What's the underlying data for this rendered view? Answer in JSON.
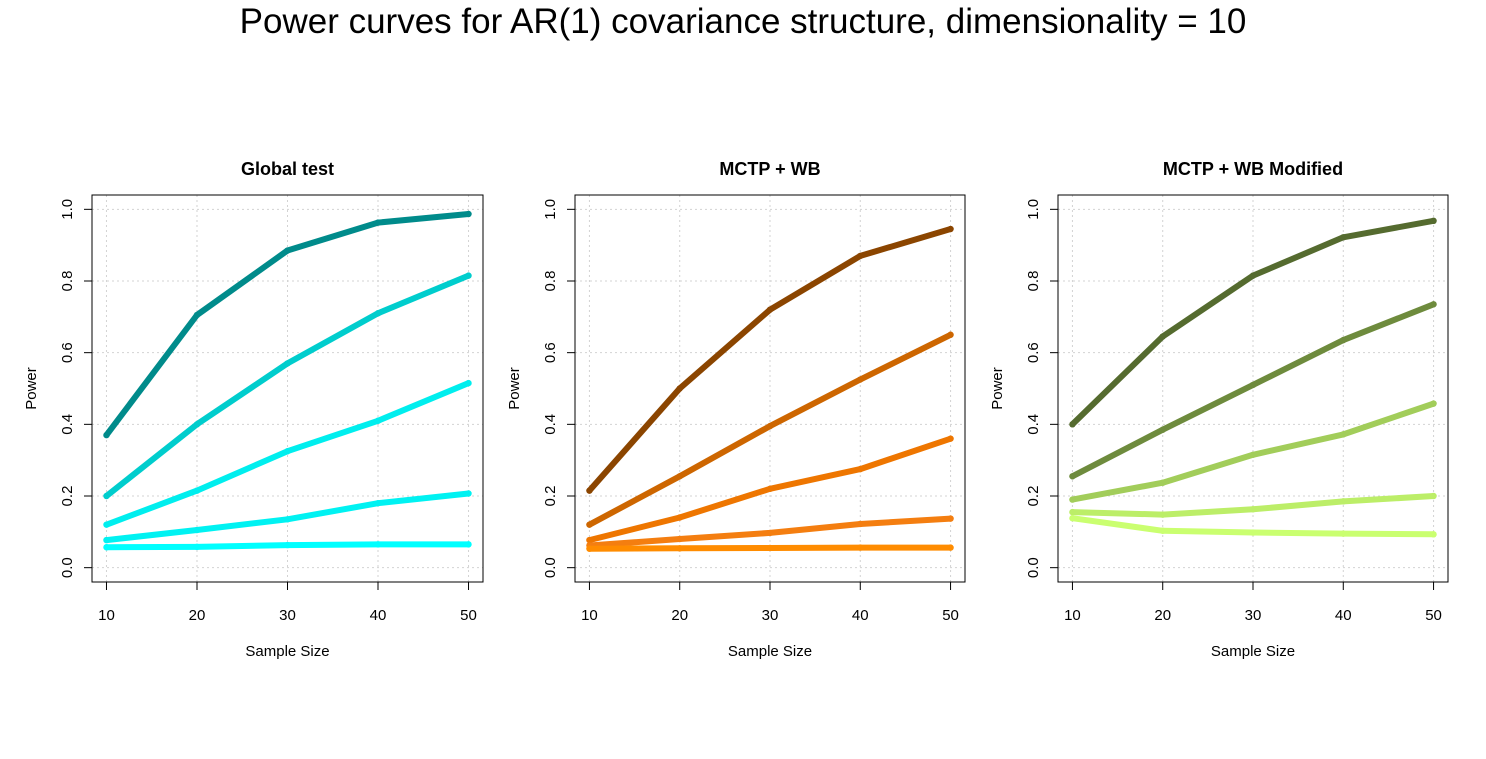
{
  "title": "Power curves for AR(1) covariance structure, dimensionality = 10",
  "chart_data": [
    {
      "type": "line",
      "title": "Global test",
      "xlabel": "Sample Size",
      "ylabel": "Power",
      "x": [
        10,
        20,
        30,
        40,
        50
      ],
      "xticks": [
        "10",
        "20",
        "30",
        "40",
        "50"
      ],
      "yticks": [
        "0.0",
        "0.2",
        "0.4",
        "0.6",
        "0.8",
        "1.0"
      ],
      "xlim": [
        10,
        50
      ],
      "ylim": [
        0,
        1
      ],
      "grid": true,
      "series": [
        {
          "color": "#008B8B",
          "values": [
            0.37,
            0.705,
            0.885,
            0.963,
            0.987
          ]
        },
        {
          "color": "#00CDCD",
          "values": [
            0.2,
            0.4,
            0.57,
            0.71,
            0.815
          ]
        },
        {
          "color": "#00EEEE",
          "values": [
            0.12,
            0.215,
            0.325,
            0.41,
            0.515
          ]
        },
        {
          "color": "#00F2F2",
          "values": [
            0.077,
            0.105,
            0.135,
            0.18,
            0.207
          ]
        },
        {
          "color": "#00FFFF",
          "values": [
            0.057,
            0.058,
            0.063,
            0.065,
            0.065
          ]
        }
      ]
    },
    {
      "type": "line",
      "title": "MCTP + WB",
      "xlabel": "Sample Size",
      "ylabel": "Power",
      "x": [
        10,
        20,
        30,
        40,
        50
      ],
      "xticks": [
        "10",
        "20",
        "30",
        "40",
        "50"
      ],
      "yticks": [
        "0.0",
        "0.2",
        "0.4",
        "0.6",
        "0.8",
        "1.0"
      ],
      "xlim": [
        10,
        50
      ],
      "ylim": [
        0,
        1
      ],
      "grid": true,
      "series": [
        {
          "color": "#8B4500",
          "values": [
            0.215,
            0.5,
            0.72,
            0.87,
            0.945
          ]
        },
        {
          "color": "#CD6600",
          "values": [
            0.12,
            0.255,
            0.395,
            0.525,
            0.65
          ]
        },
        {
          "color": "#EE7600",
          "values": [
            0.077,
            0.14,
            0.22,
            0.275,
            0.36
          ]
        },
        {
          "color": "#F47E10",
          "values": [
            0.062,
            0.08,
            0.097,
            0.122,
            0.137
          ]
        },
        {
          "color": "#FF8C00",
          "values": [
            0.053,
            0.054,
            0.055,
            0.056,
            0.056
          ]
        }
      ]
    },
    {
      "type": "line",
      "title": "MCTP + WB Modified",
      "xlabel": "Sample Size",
      "ylabel": "Power",
      "x": [
        10,
        20,
        30,
        40,
        50
      ],
      "xticks": [
        "10",
        "20",
        "30",
        "40",
        "50"
      ],
      "yticks": [
        "0.0",
        "0.2",
        "0.4",
        "0.6",
        "0.8",
        "1.0"
      ],
      "xlim": [
        10,
        50
      ],
      "ylim": [
        0,
        1
      ],
      "grid": true,
      "series": [
        {
          "color": "#556B2F",
          "values": [
            0.4,
            0.645,
            0.815,
            0.922,
            0.968
          ]
        },
        {
          "color": "#6E8B3D",
          "values": [
            0.255,
            0.385,
            0.51,
            0.635,
            0.735
          ]
        },
        {
          "color": "#A2CD5A",
          "values": [
            0.19,
            0.237,
            0.315,
            0.372,
            0.458
          ]
        },
        {
          "color": "#BCEE68",
          "values": [
            0.155,
            0.148,
            0.163,
            0.185,
            0.2
          ]
        },
        {
          "color": "#CAFF70",
          "values": [
            0.138,
            0.103,
            0.098,
            0.095,
            0.093
          ]
        }
      ]
    }
  ]
}
